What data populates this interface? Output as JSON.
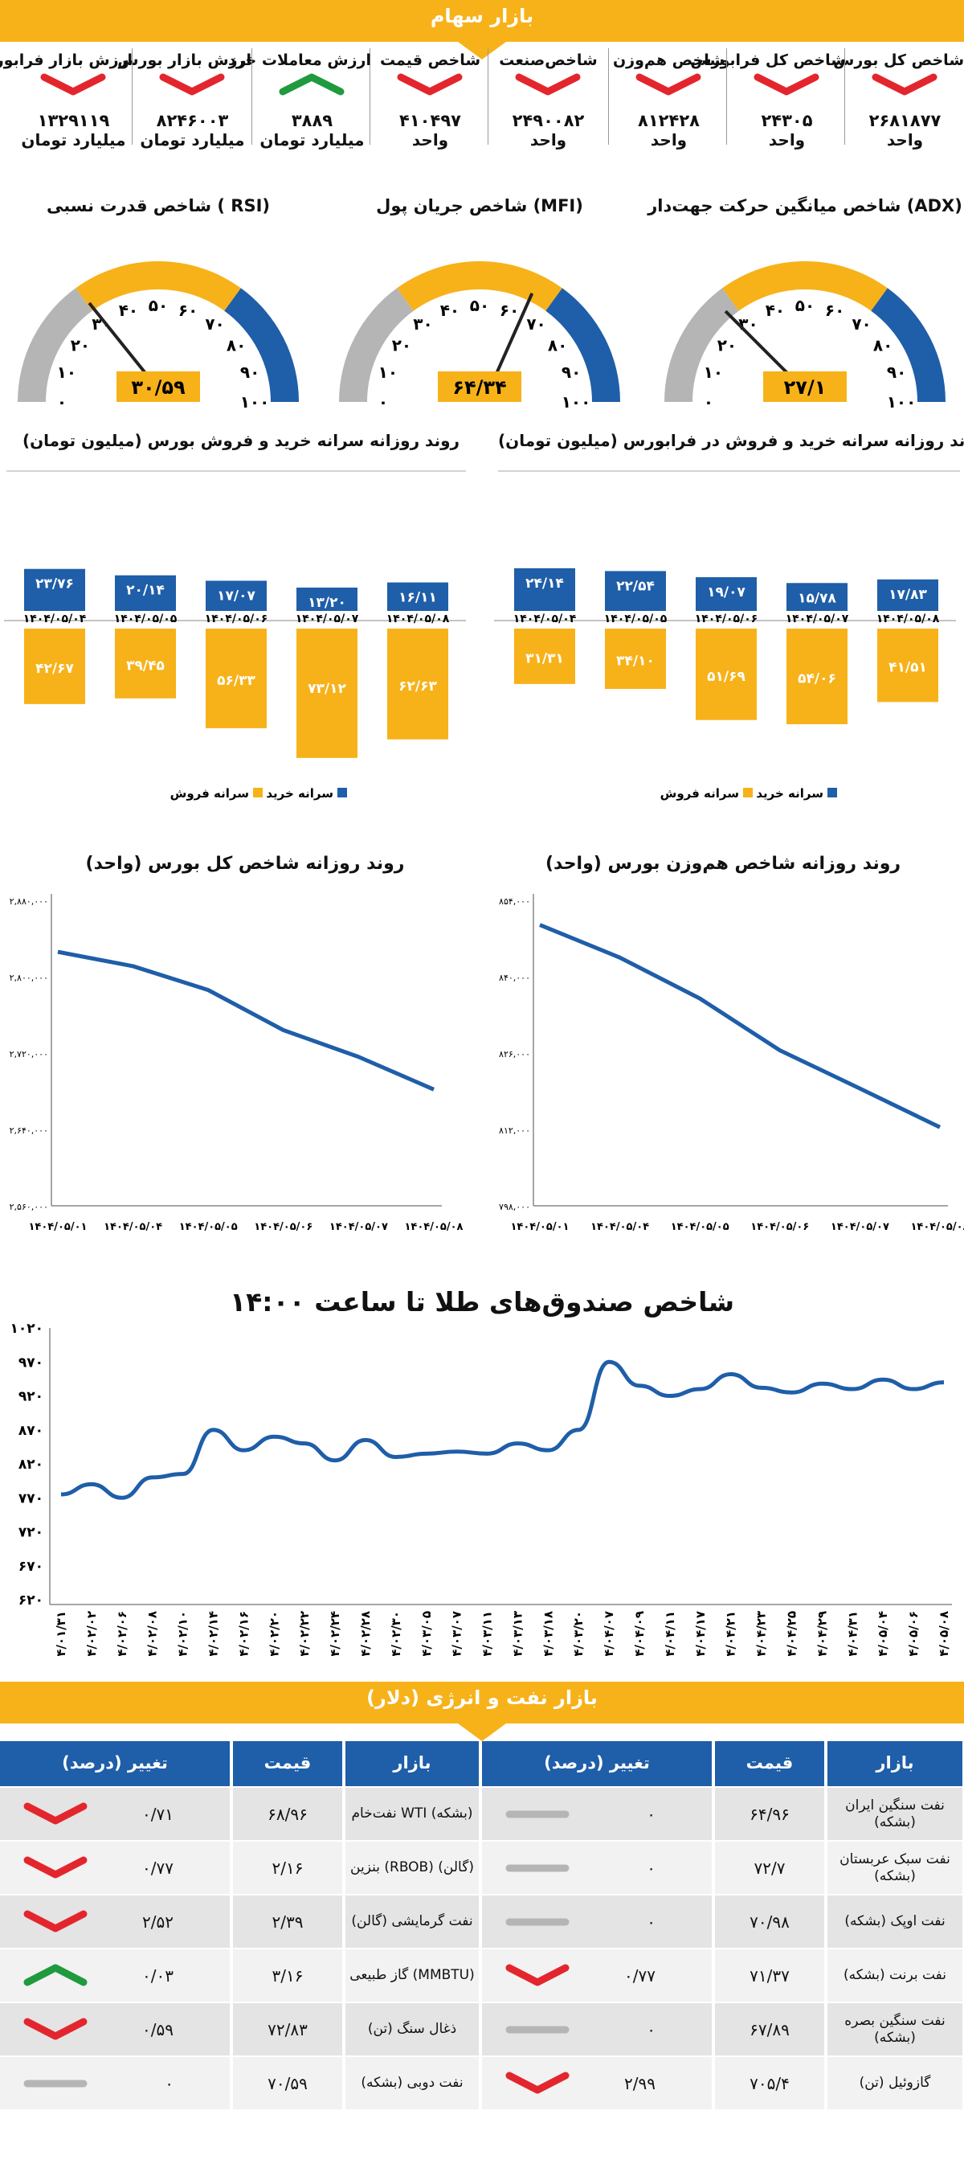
{
  "stock_market": {
    "title": "بازار سهام",
    "stats": [
      {
        "label": "شاخص کل بورس",
        "value": "۲۶۸۱۸۷۷",
        "unit": "واحد",
        "trend": "down"
      },
      {
        "label": "شاخص کل فرابورس",
        "value": "۲۴۳۰۵",
        "unit": "واحد",
        "trend": "down"
      },
      {
        "label": "شاخص هم‌وزن",
        "value": "۸۱۲۴۲۸",
        "unit": "واحد",
        "trend": "down"
      },
      {
        "label": "شاخص‌صنعت",
        "value": "۲۴۹۰۰۸۲",
        "unit": "واحد",
        "trend": "down"
      },
      {
        "label": "شاخص قیمت",
        "value": "۴۱۰۴۹۷",
        "unit": "واحد",
        "trend": "down"
      },
      {
        "label": "ارزش معاملات خرد",
        "value": "۳۸۸۹",
        "unit": "میلیارد تومان",
        "trend": "up"
      },
      {
        "label": "ارزش بازار بورس",
        "value": "۸۲۴۶۰۰۳",
        "unit": "میلیارد تومان",
        "trend": "down"
      },
      {
        "label": "ارزش بازار فرابورس",
        "value": "۱۳۲۹۱۱۹",
        "unit": "میلیارد تومان",
        "trend": "down"
      }
    ]
  },
  "gauges": [
    {
      "title": "شاخص میانگین حرکت جهت‌دار (ADX)",
      "value": 27.1,
      "value_label": "۲۷/۱"
    },
    {
      "title": "شاخص جریان پول (MFI)",
      "value": 64.34,
      "value_label": "۶۴/۳۴"
    },
    {
      "title": "شاخص قدرت نسبی ( RSI)",
      "value": 30.59,
      "value_label": "۳۰/۵۹"
    }
  ],
  "gauge_ticks": [
    "۰",
    "۱۰",
    "۲۰",
    "۳۰",
    "۴۰",
    "۵۰",
    "۶۰",
    "۷۰",
    "۸۰",
    "۹۰",
    "۱۰۰"
  ],
  "chart_data": [
    {
      "type": "bar",
      "title": "روند روزانه سرانه خرید و فروش در فرابورس (میلیون تومان)",
      "categories": [
        "۱۴۰۴/۰۵/۰۴",
        "۱۴۰۴/۰۵/۰۵",
        "۱۴۰۴/۰۵/۰۶",
        "۱۴۰۴/۰۵/۰۷",
        "۱۴۰۴/۰۵/۰۸"
      ],
      "series": [
        {
          "name": "سرانه خرید",
          "values": [
            24.14,
            22.54,
            19.07,
            15.78,
            17.83
          ],
          "labels": [
            "۲۴/۱۴",
            "۲۲/۵۴",
            "۱۹/۰۷",
            "۱۵/۷۸",
            "۱۷/۸۳"
          ]
        },
        {
          "name": "سرانه فروش",
          "values": [
            31.31,
            34.1,
            51.69,
            54.06,
            41.51
          ],
          "labels": [
            "۳۱/۳۱",
            "۳۴/۱۰",
            "۵۱/۶۹",
            "۵۴/۰۶",
            "۴۱/۵۱"
          ]
        }
      ]
    },
    {
      "type": "bar",
      "title": "روند روزانه سرانه خرید و فروش بورس (میلیون تومان)",
      "categories": [
        "۱۴۰۴/۰۵/۰۴",
        "۱۴۰۴/۰۵/۰۵",
        "۱۴۰۴/۰۵/۰۶",
        "۱۴۰۴/۰۵/۰۷",
        "۱۴۰۴/۰۵/۰۸"
      ],
      "series": [
        {
          "name": "سرانه خرید",
          "values": [
            23.76,
            20.14,
            17.07,
            13.2,
            16.11
          ],
          "labels": [
            "۲۳/۷۶",
            "۲۰/۱۴",
            "۱۷/۰۷",
            "۱۳/۲۰",
            "۱۶/۱۱"
          ]
        },
        {
          "name": "سرانه فروش",
          "values": [
            42.67,
            39.45,
            56.33,
            73.12,
            62.63
          ],
          "labels": [
            "۴۲/۶۷",
            "۳۹/۴۵",
            "۵۶/۳۳",
            "۷۳/۱۲",
            "۶۲/۶۳"
          ]
        }
      ]
    },
    {
      "type": "line",
      "title": "روند روزانه شاخص هم‌وزن بورس (واحد)",
      "x": [
        "۱۴۰۴/۰۵/۰۱",
        "۱۴۰۴/۰۵/۰۴",
        "۱۴۰۴/۰۵/۰۵",
        "۱۴۰۴/۰۵/۰۶",
        "۱۴۰۴/۰۵/۰۷",
        "۱۴۰۴/۰۵/۰۸"
      ],
      "values": [
        849500,
        843500,
        836000,
        826500,
        819500,
        812400
      ],
      "yticks": [
        798000,
        812000,
        826000,
        840000,
        854000
      ],
      "ytick_labels": [
        "۷۹۸,۰۰۰",
        "۸۱۲,۰۰۰",
        "۸۲۶,۰۰۰",
        "۸۴۰,۰۰۰",
        "۸۵۴,۰۰۰"
      ],
      "ylim": [
        798000,
        854000
      ]
    },
    {
      "type": "line",
      "title": "روند روزانه شاخص کل بورس (واحد)",
      "x": [
        "۱۴۰۴/۰۵/۰۱",
        "۱۴۰۴/۰۵/۰۴",
        "۱۴۰۴/۰۵/۰۵",
        "۱۴۰۴/۰۵/۰۶",
        "۱۴۰۴/۰۵/۰۷",
        "۱۴۰۴/۰۵/۰۸"
      ],
      "values": [
        2826000,
        2811000,
        2786000,
        2744000,
        2716000,
        2681877
      ],
      "yticks": [
        2560000,
        2640000,
        2720000,
        2800000,
        2880000
      ],
      "ytick_labels": [
        "۲,۵۶۰,۰۰۰",
        "۲,۶۴۰,۰۰۰",
        "۲,۷۲۰,۰۰۰",
        "۲,۸۰۰,۰۰۰",
        "۲,۸۸۰,۰۰۰"
      ],
      "ylim": [
        2560000,
        2880000
      ]
    },
    {
      "type": "line",
      "title": "شاخص صندوق‌های طلا تا ساعت ۱۴:۰۰",
      "x": [
        "۱۴۰۴/۰۱/۳۱",
        "۱۴۰۴/۰۲/۰۲",
        "۱۴۰۴/۰۲/۰۶",
        "۱۴۰۴/۰۲/۰۸",
        "۱۴۰۴/۰۲/۱۰",
        "۱۴۰۴/۰۲/۱۴",
        "۱۴۰۴/۰۲/۱۶",
        "۱۴۰۴/۰۲/۲۰",
        "۱۴۰۴/۰۲/۲۲",
        "۱۴۰۴/۰۲/۲۴",
        "۱۴۰۴/۰۲/۲۸",
        "۱۴۰۴/۰۲/۳۰",
        "۱۴۰۴/۰۳/۰۵",
        "۱۴۰۴/۰۳/۰۷",
        "۱۴۰۴/۰۳/۱۱",
        "۱۴۰۴/۰۳/۱۳",
        "۱۴۰۴/۰۳/۱۸",
        "۱۴۰۴/۰۳/۲۰",
        "۱۴۰۴/۰۴/۰۷",
        "۱۴۰۴/۰۴/۰۹",
        "۱۴۰۴/۰۴/۱۱",
        "۱۴۰۴/۰۴/۱۷",
        "۱۴۰۴/۰۴/۲۱",
        "۱۴۰۴/۰۴/۲۳",
        "۱۴۰۴/۰۴/۲۵",
        "۱۴۰۴/۰۴/۲۹",
        "۱۴۰۴/۰۴/۳۱",
        "۱۴۰۴/۰۵/۰۴",
        "۱۴۰۴/۰۵/۰۶",
        "۱۴۰۴/۰۵/۰۸"
      ],
      "values": [
        775,
        790,
        770,
        800,
        805,
        870,
        840,
        860,
        850,
        825,
        855,
        830,
        835,
        838,
        835,
        850,
        840,
        870,
        970,
        935,
        920,
        930,
        952,
        932,
        925,
        938,
        930,
        944,
        930,
        940
      ],
      "yticks": [
        620,
        670,
        720,
        770,
        820,
        870,
        920,
        970,
        1020
      ],
      "ytick_labels": [
        "۶۲۰",
        "۶۷۰",
        "۷۲۰",
        "۷۷۰",
        "۸۲۰",
        "۸۷۰",
        "۹۲۰",
        "۹۷۰",
        "۱۰۲۰"
      ],
      "ylim": [
        620,
        1020
      ]
    }
  ],
  "legend": {
    "buy": "سرانه خرید",
    "sell": "سرانه فروش"
  },
  "energy": {
    "title": "بازار نفت و انرژی (دلار)",
    "headers": {
      "market": "بازار",
      "price": "قیمت",
      "change": "تغییر (درصد)"
    },
    "right_rows": [
      {
        "name": "نفت سنگین ایران (بشکه)",
        "price": "۶۴/۹۶",
        "change": "۰",
        "trend": "flat"
      },
      {
        "name": "نفت سبک عربستان (بشکه)",
        "price": "۷۲/۷",
        "change": "۰",
        "trend": "flat"
      },
      {
        "name": "نفت اوپک (بشکه)",
        "price": "۷۰/۹۸",
        "change": "۰",
        "trend": "flat"
      },
      {
        "name": "نفت برنت (بشکه)",
        "price": "۷۱/۳۷",
        "change": "۰/۷۷",
        "trend": "down"
      },
      {
        "name": "نفت سنگین بصره (بشکه)",
        "price": "۶۷/۸۹",
        "change": "۰",
        "trend": "flat"
      },
      {
        "name": "گازوئیل (تن)",
        "price": "۷۰۵/۴",
        "change": "۲/۹۹",
        "trend": "down"
      }
    ],
    "left_rows": [
      {
        "name": "نفت‌خام WTI (بشکه)",
        "price": "۶۸/۹۶",
        "change": "۰/۷۱",
        "trend": "down"
      },
      {
        "name": "بنزین (RBOB) (گالن)",
        "price": "۲/۱۶",
        "change": "۰/۷۷",
        "trend": "down"
      },
      {
        "name": "نفت گرمایشی (گالن)",
        "price": "۲/۳۹",
        "change": "۲/۵۲",
        "trend": "down"
      },
      {
        "name": "گاز طبیعی (MMBTU)",
        "price": "۳/۱۶",
        "change": "۰/۰۳",
        "trend": "up"
      },
      {
        "name": "ذغال سنگ (تن)",
        "price": "۷۲/۸۳",
        "change": "۰/۵۹",
        "trend": "down"
      },
      {
        "name": "نفت دوبی (بشکه)",
        "price": "۷۰/۵۹",
        "change": "۰",
        "trend": "flat"
      }
    ]
  },
  "colors": {
    "accent": "#f7b21a",
    "blue": "#1f5ea8",
    "grey": "#b5b5b5",
    "red": "#e3262d",
    "green": "#1f9a3e",
    "line": "#1f5ea8"
  }
}
